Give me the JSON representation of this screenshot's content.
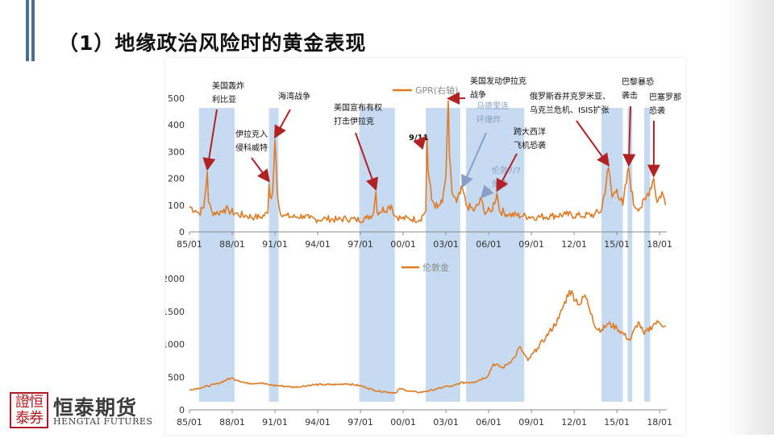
{
  "page": {
    "title": "（1）地缘政治风险时的黄金表现",
    "brand": {
      "logo_text": "證恒泰券",
      "name_cn": "恒泰期货",
      "name_en": "HENGTAI FUTURES"
    }
  },
  "colors": {
    "line": "#e07b22",
    "shade": "#bcd4ee",
    "annotation_arrow": "#b22222",
    "light_arrow": "#8a9fc4",
    "title_bar": "#4a6f96"
  },
  "chart_data": [
    {
      "type": "line",
      "series": [
        {
          "name": "GPR(右轴)"
        }
      ],
      "x_ticks": [
        "85/01",
        "88/01",
        "91/01",
        "94/01",
        "97/01",
        "00/01",
        "03/01",
        "06/01",
        "09/01",
        "12/01",
        "15/01",
        "18/01"
      ],
      "xlim": [
        "1985-01",
        "2018-07"
      ],
      "y_ticks": [
        "0",
        "100",
        "200",
        "300",
        "400",
        "500"
      ],
      "ylim": [
        0,
        500
      ],
      "shaded_periods": [
        [
          "1985-09",
          "1988-03"
        ],
        [
          "1990-08",
          "1991-04"
        ],
        [
          "1996-12",
          "1999-06"
        ],
        [
          "2001-08",
          "2004-01"
        ],
        [
          "2004-06",
          "2008-07"
        ],
        [
          "2013-12",
          "2015-06"
        ],
        [
          "2015-10",
          "2016-02"
        ],
        [
          "2016-12",
          "2017-05"
        ]
      ],
      "events": [
        {
          "label": "美国轰炸利比亚",
          "lines": [
            "美国轰炸",
            "利比亚"
          ],
          "date": "1986-04",
          "value": 225
        },
        {
          "label": "伊拉克入侵科威特",
          "lines": [
            "伊拉克入",
            "侵科威特"
          ],
          "date": "1990-08",
          "value": 180
        },
        {
          "label": "海湾战争",
          "lines": [
            "海湾战争"
          ],
          "date": "1991-01",
          "value": 345
        },
        {
          "label": "美国宣布有权打击伊拉克",
          "lines": [
            "美国宣布有权",
            "打击伊拉克"
          ],
          "date": "1998-02",
          "value": 150
        },
        {
          "label": "9/11",
          "lines": [
            "9/11"
          ],
          "date": "2001-09",
          "value": 355
        },
        {
          "label": "美国发动伊拉克战争",
          "lines": [
            "美国发动伊拉克",
            "战争"
          ],
          "date": "2003-03",
          "value": 490
        },
        {
          "label": "马德里连环爆炸",
          "lines": [
            "马德里连",
            "环爆炸"
          ],
          "date": "2004-03",
          "value": 160
        },
        {
          "label": "伦敦7/7爆炸",
          "lines": [
            "伦敦7/7",
            "爆炸"
          ],
          "date": "2005-07",
          "value": 120
        },
        {
          "label": "跨大西洋飞机恐袭",
          "lines": [
            "跨大西洋",
            "飞机恐袭"
          ],
          "date": "2006-08",
          "value": 145
        },
        {
          "label": "俄罗斯吞并克罗米亚、乌克兰危机、ISIS扩张",
          "lines": [
            "俄罗斯吞并克罗米亚、",
            "乌克兰危机、ISIS扩张"
          ],
          "date": "2014-06",
          "value": 240
        },
        {
          "label": "巴黎暴恐袭击",
          "lines": [
            "巴黎暴恐",
            "袭击"
          ],
          "date": "2015-11",
          "value": 240
        },
        {
          "label": "巴塞罗那恐袭",
          "lines": [
            "巴塞罗那",
            "恐袭"
          ],
          "date": "2017-08",
          "value": 200
        }
      ],
      "values": [
        [
          "1985-01",
          95
        ],
        [
          "1985-06",
          80
        ],
        [
          "1985-09",
          70
        ],
        [
          "1986-01",
          90
        ],
        [
          "1986-04",
          225
        ],
        [
          "1986-05",
          110
        ],
        [
          "1986-08",
          75
        ],
        [
          "1987-01",
          70
        ],
        [
          "1987-06",
          85
        ],
        [
          "1987-10",
          80
        ],
        [
          "1988-06",
          65
        ],
        [
          "1989-01",
          60
        ],
        [
          "1989-08",
          55
        ],
        [
          "1990-01",
          55
        ],
        [
          "1990-07",
          70
        ],
        [
          "1990-08",
          180
        ],
        [
          "1990-09",
          130
        ],
        [
          "1990-11",
          150
        ],
        [
          "1991-01",
          345
        ],
        [
          "1991-02",
          260
        ],
        [
          "1991-03",
          140
        ],
        [
          "1991-05",
          80
        ],
        [
          "1991-09",
          60
        ],
        [
          "1992-06",
          55
        ],
        [
          "1993-01",
          60
        ],
        [
          "1993-06",
          50
        ],
        [
          "1994-01",
          45
        ],
        [
          "1994-08",
          50
        ],
        [
          "1995-06",
          45
        ],
        [
          "1996-01",
          50
        ],
        [
          "1996-09",
          45
        ],
        [
          "1997-06",
          50
        ],
        [
          "1997-12",
          70
        ],
        [
          "1998-02",
          150
        ],
        [
          "1998-03",
          75
        ],
        [
          "1998-12",
          90
        ],
        [
          "1999-03",
          100
        ],
        [
          "1999-06",
          60
        ],
        [
          "1999-12",
          50
        ],
        [
          "2000-06",
          50
        ],
        [
          "2001-03",
          45
        ],
        [
          "2001-08",
          80
        ],
        [
          "2001-09",
          355
        ],
        [
          "2001-10",
          230
        ],
        [
          "2002-01",
          120
        ],
        [
          "2002-06",
          90
        ],
        [
          "2002-10",
          110
        ],
        [
          "2003-01",
          210
        ],
        [
          "2003-03",
          490
        ],
        [
          "2003-04",
          280
        ],
        [
          "2003-06",
          150
        ],
        [
          "2003-10",
          110
        ],
        [
          "2004-03",
          160
        ],
        [
          "2004-06",
          100
        ],
        [
          "2005-01",
          80
        ],
        [
          "2005-07",
          120
        ],
        [
          "2005-09",
          80
        ],
        [
          "2006-03",
          75
        ],
        [
          "2006-08",
          145
        ],
        [
          "2006-10",
          80
        ],
        [
          "2007-06",
          65
        ],
        [
          "2008-06",
          60
        ],
        [
          "2009-06",
          55
        ],
        [
          "2010-06",
          60
        ],
        [
          "2011-06",
          65
        ],
        [
          "2012-06",
          60
        ],
        [
          "2013-06",
          65
        ],
        [
          "2013-12",
          80
        ],
        [
          "2014-06",
          240
        ],
        [
          "2014-09",
          130
        ],
        [
          "2015-01",
          160
        ],
        [
          "2015-06",
          100
        ],
        [
          "2015-11",
          240
        ],
        [
          "2016-03",
          100
        ],
        [
          "2016-09",
          90
        ],
        [
          "2017-01",
          120
        ],
        [
          "2017-08",
          200
        ],
        [
          "2017-11",
          110
        ],
        [
          "2018-03",
          150
        ],
        [
          "2018-06",
          100
        ]
      ]
    },
    {
      "type": "line",
      "series": [
        {
          "name": "伦敦金"
        }
      ],
      "x_ticks": [
        "85/01",
        "88/01",
        "91/01",
        "94/01",
        "97/01",
        "00/01",
        "03/01",
        "06/01",
        "09/01",
        "12/01",
        "15/01",
        "18/01"
      ],
      "xlim": [
        "1985-01",
        "2018-07"
      ],
      "y_ticks": [
        "0",
        "500",
        "1000",
        "1500",
        "2000"
      ],
      "ylim": [
        0,
        2000
      ],
      "shaded_periods": [
        [
          "1985-09",
          "1988-03"
        ],
        [
          "1990-08",
          "1991-04"
        ],
        [
          "1996-12",
          "1999-06"
        ],
        [
          "2001-08",
          "2004-01"
        ],
        [
          "2004-06",
          "2008-07"
        ],
        [
          "2013-12",
          "2015-06"
        ],
        [
          "2015-10",
          "2016-02"
        ],
        [
          "2016-12",
          "2017-05"
        ]
      ],
      "values": [
        [
          "1985-01",
          305
        ],
        [
          "1986-01",
          345
        ],
        [
          "1987-01",
          400
        ],
        [
          "1987-12",
          486
        ],
        [
          "1988-06",
          450
        ],
        [
          "1989-01",
          405
        ],
        [
          "1990-01",
          410
        ],
        [
          "1990-08",
          380
        ],
        [
          "1991-06",
          365
        ],
        [
          "1992-06",
          345
        ],
        [
          "1993-08",
          380
        ],
        [
          "1994-06",
          385
        ],
        [
          "1995-06",
          385
        ],
        [
          "1996-01",
          400
        ],
        [
          "1996-12",
          370
        ],
        [
          "1997-06",
          340
        ],
        [
          "1998-01",
          295
        ],
        [
          "1999-07",
          255
        ],
        [
          "1999-10",
          325
        ],
        [
          "2000-06",
          285
        ],
        [
          "2001-03",
          265
        ],
        [
          "2001-09",
          285
        ],
        [
          "2002-06",
          320
        ],
        [
          "2003-01",
          360
        ],
        [
          "2003-06",
          355
        ],
        [
          "2004-01",
          410
        ],
        [
          "2005-01",
          425
        ],
        [
          "2005-12",
          510
        ],
        [
          "2006-05",
          700
        ],
        [
          "2007-01",
          640
        ],
        [
          "2007-11",
          800
        ],
        [
          "2008-03",
          960
        ],
        [
          "2008-10",
          750
        ],
        [
          "2009-06",
          940
        ],
        [
          "2010-01",
          1100
        ],
        [
          "2010-12",
          1390
        ],
        [
          "2011-09",
          1820
        ],
        [
          "2012-06",
          1600
        ],
        [
          "2012-10",
          1750
        ],
        [
          "2013-04",
          1450
        ],
        [
          "2013-07",
          1250
        ],
        [
          "2013-12",
          1220
        ],
        [
          "2014-06",
          1310
        ],
        [
          "2015-01",
          1250
        ],
        [
          "2015-12",
          1060
        ],
        [
          "2016-07",
          1340
        ],
        [
          "2016-12",
          1150
        ],
        [
          "2017-09",
          1320
        ],
        [
          "2018-01",
          1330
        ],
        [
          "2018-06",
          1280
        ]
      ]
    }
  ]
}
